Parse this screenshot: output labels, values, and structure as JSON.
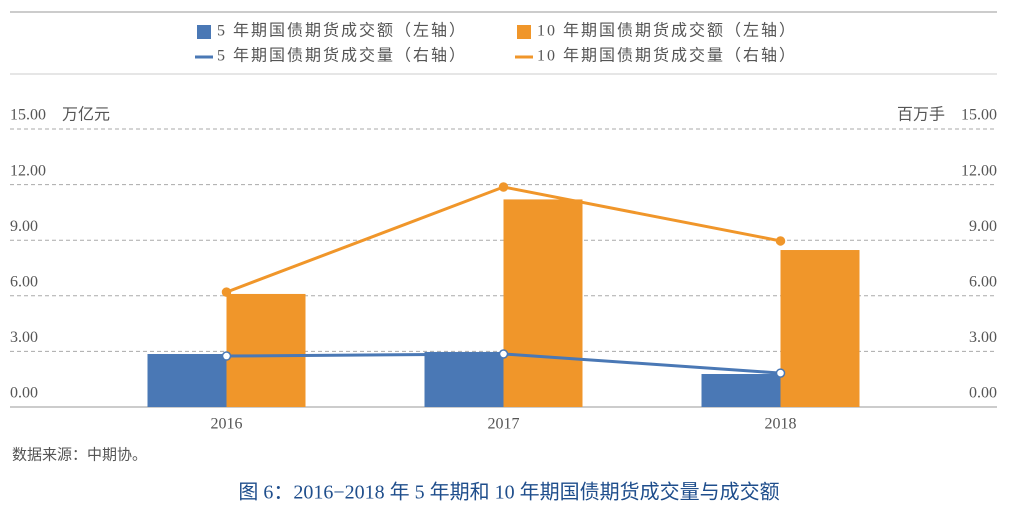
{
  "chart_data": {
    "type": "bar-line",
    "caption": "图 6：2016−2018 年 5 年期和 10 年期国债期货成交量与成交额",
    "source": "数据来源：中期协。",
    "ylabel": "万亿元",
    "y2label": "百万手",
    "categories": [
      "2016",
      "2017",
      "2018"
    ],
    "series": [
      {
        "name": "5 年期国债期货成交额（左轴）",
        "type": "bar",
        "color": "#4a78b5",
        "values": [
          2.86,
          2.97,
          1.78
        ]
      },
      {
        "name": "10 年期国债期货成交额（左轴）",
        "type": "bar",
        "color": "#f0962a",
        "values": [
          6.1,
          11.2,
          8.47
        ]
      },
      {
        "name": "5 年期国债期货成交量（右轴）",
        "type": "line",
        "axis": "y2",
        "color": "#4a78b5",
        "values": [
          2.75,
          2.86,
          1.83
        ]
      },
      {
        "name": "10 年期国债期货成交量（右轴）",
        "type": "line",
        "axis": "y2",
        "color": "#f0962a",
        "values": [
          6.2,
          11.87,
          8.96
        ]
      }
    ],
    "ylim": [
      0,
      15
    ],
    "y2lim": [
      0,
      15
    ],
    "yticks": [
      {
        "value": 0,
        "label": "0.00"
      },
      {
        "value": 3,
        "label": "3.00"
      },
      {
        "value": 6,
        "label": "6.00"
      },
      {
        "value": 9,
        "label": "9.00"
      },
      {
        "value": 12,
        "label": "12.00"
      },
      {
        "value": 15,
        "label": "15.00"
      }
    ],
    "y2ticks": [
      {
        "value": 0,
        "label": "0.00"
      },
      {
        "value": 3,
        "label": "3.00"
      },
      {
        "value": 6,
        "label": "6.00"
      },
      {
        "value": 9,
        "label": "9.00"
      },
      {
        "value": 12,
        "label": "12.00"
      },
      {
        "value": 15,
        "label": "15.00"
      }
    ],
    "grid": true
  }
}
